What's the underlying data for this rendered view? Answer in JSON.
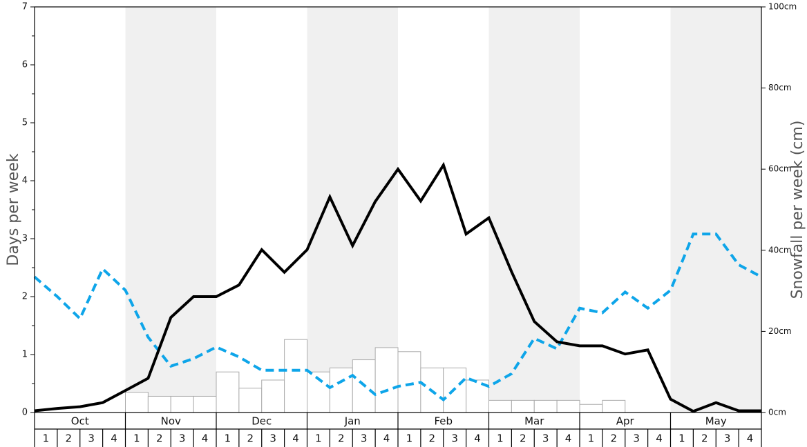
{
  "chart_data": {
    "type": "bar+line",
    "months": [
      "Oct",
      "Nov",
      "Dec",
      "Jan",
      "Feb",
      "Mar",
      "Apr",
      "May"
    ],
    "weeks": [
      "1",
      "2",
      "3",
      "4"
    ],
    "ylabel": "Days per week",
    "ylim": [
      0,
      7
    ],
    "y_ticks": [
      "0",
      "1",
      "2",
      "3",
      "4",
      "5",
      "6",
      "7"
    ],
    "y2label": "Snowfall per week (cm)",
    "y2lim": [
      0,
      100
    ],
    "y2_ticks": [
      "0cm",
      "20cm",
      "40cm",
      "60cm",
      "80cm",
      "100cm"
    ],
    "shaded_months": [
      "Nov",
      "Jan",
      "Mar",
      "May"
    ],
    "colors": {
      "bars_fill": "#ffffff",
      "bars_stroke": "#aaaaaa",
      "solid_line": "#000000",
      "dashed_line": "#0ea5e9",
      "band": "#f0f0f0"
    },
    "snowfall_cm": [
      0,
      0,
      0,
      0,
      5,
      4,
      4,
      4,
      10,
      6,
      8,
      18,
      10,
      11,
      13,
      16,
      15,
      11,
      11,
      8,
      3,
      3,
      3,
      3,
      2,
      3,
      0,
      0,
      0,
      0,
      0,
      0
    ],
    "solid_line_days": [
      0.03,
      0.07,
      0.1,
      0.17,
      0.38,
      0.59,
      1.64,
      2.0,
      2.0,
      2.2,
      2.81,
      2.42,
      2.81,
      3.72,
      2.88,
      3.64,
      4.2,
      3.65,
      4.27,
      3.08,
      3.36,
      2.43,
      1.57,
      1.22,
      1.15,
      1.15,
      1.01,
      1.08,
      0.23,
      0.02,
      0.17,
      0.03,
      0.03
    ],
    "dashed_line_days": [
      2.34,
      2.0,
      1.62,
      2.48,
      2.11,
      1.3,
      0.8,
      0.93,
      1.13,
      0.96,
      0.73,
      0.73,
      0.73,
      0.43,
      0.64,
      0.31,
      0.45,
      0.52,
      0.22,
      0.6,
      0.45,
      0.67,
      1.28,
      1.1,
      1.8,
      1.72,
      2.08,
      1.8,
      2.11,
      3.08,
      3.08,
      2.55,
      2.34
    ]
  }
}
